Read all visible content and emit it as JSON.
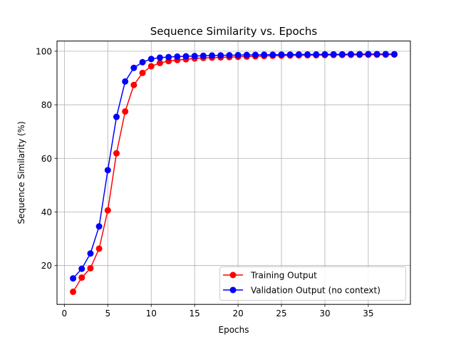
{
  "chart_data": {
    "type": "line",
    "title": "Sequence Similarity vs. Epochs",
    "xlabel": "Epochs",
    "ylabel": "Sequence Similarity (%)",
    "xlim": [
      -0.85,
      39.85
    ],
    "ylim": [
      5.5,
      103.8
    ],
    "xticks": [
      0,
      5,
      10,
      15,
      20,
      25,
      30,
      35
    ],
    "yticks": [
      20,
      40,
      60,
      80,
      100
    ],
    "grid": true,
    "legend_position": "lower-right",
    "x": [
      1,
      2,
      3,
      4,
      5,
      6,
      7,
      8,
      9,
      10,
      11,
      12,
      13,
      14,
      15,
      16,
      17,
      18,
      19,
      20,
      21,
      22,
      23,
      24,
      25,
      26,
      27,
      28,
      29,
      30,
      31,
      32,
      33,
      34,
      35,
      36,
      37,
      38
    ],
    "series": [
      {
        "name": "Training Output",
        "color": "#ff0000",
        "values": [
          10.2,
          15.5,
          19.0,
          26.3,
          40.6,
          61.9,
          77.5,
          87.4,
          91.9,
          94.4,
          95.6,
          96.3,
          96.7,
          97.0,
          97.3,
          97.5,
          97.6,
          97.7,
          97.8,
          97.9,
          98.0,
          98.1,
          98.2,
          98.3,
          98.35,
          98.4,
          98.45,
          98.5,
          98.5,
          98.55,
          98.6,
          98.6,
          98.65,
          98.65,
          98.7,
          98.7,
          98.7,
          98.75
        ]
      },
      {
        "name": "Validation Output (no context)",
        "color": "#0000ff",
        "values": [
          15.2,
          18.8,
          24.5,
          34.6,
          55.6,
          75.5,
          88.7,
          93.8,
          95.9,
          97.1,
          97.6,
          97.8,
          98.0,
          98.1,
          98.2,
          98.3,
          98.4,
          98.45,
          98.5,
          98.55,
          98.6,
          98.65,
          98.7,
          98.7,
          98.75,
          98.75,
          98.8,
          98.8,
          98.8,
          98.85,
          98.85,
          98.85,
          98.9,
          98.9,
          98.95,
          98.95,
          98.95,
          98.9
        ]
      }
    ]
  }
}
